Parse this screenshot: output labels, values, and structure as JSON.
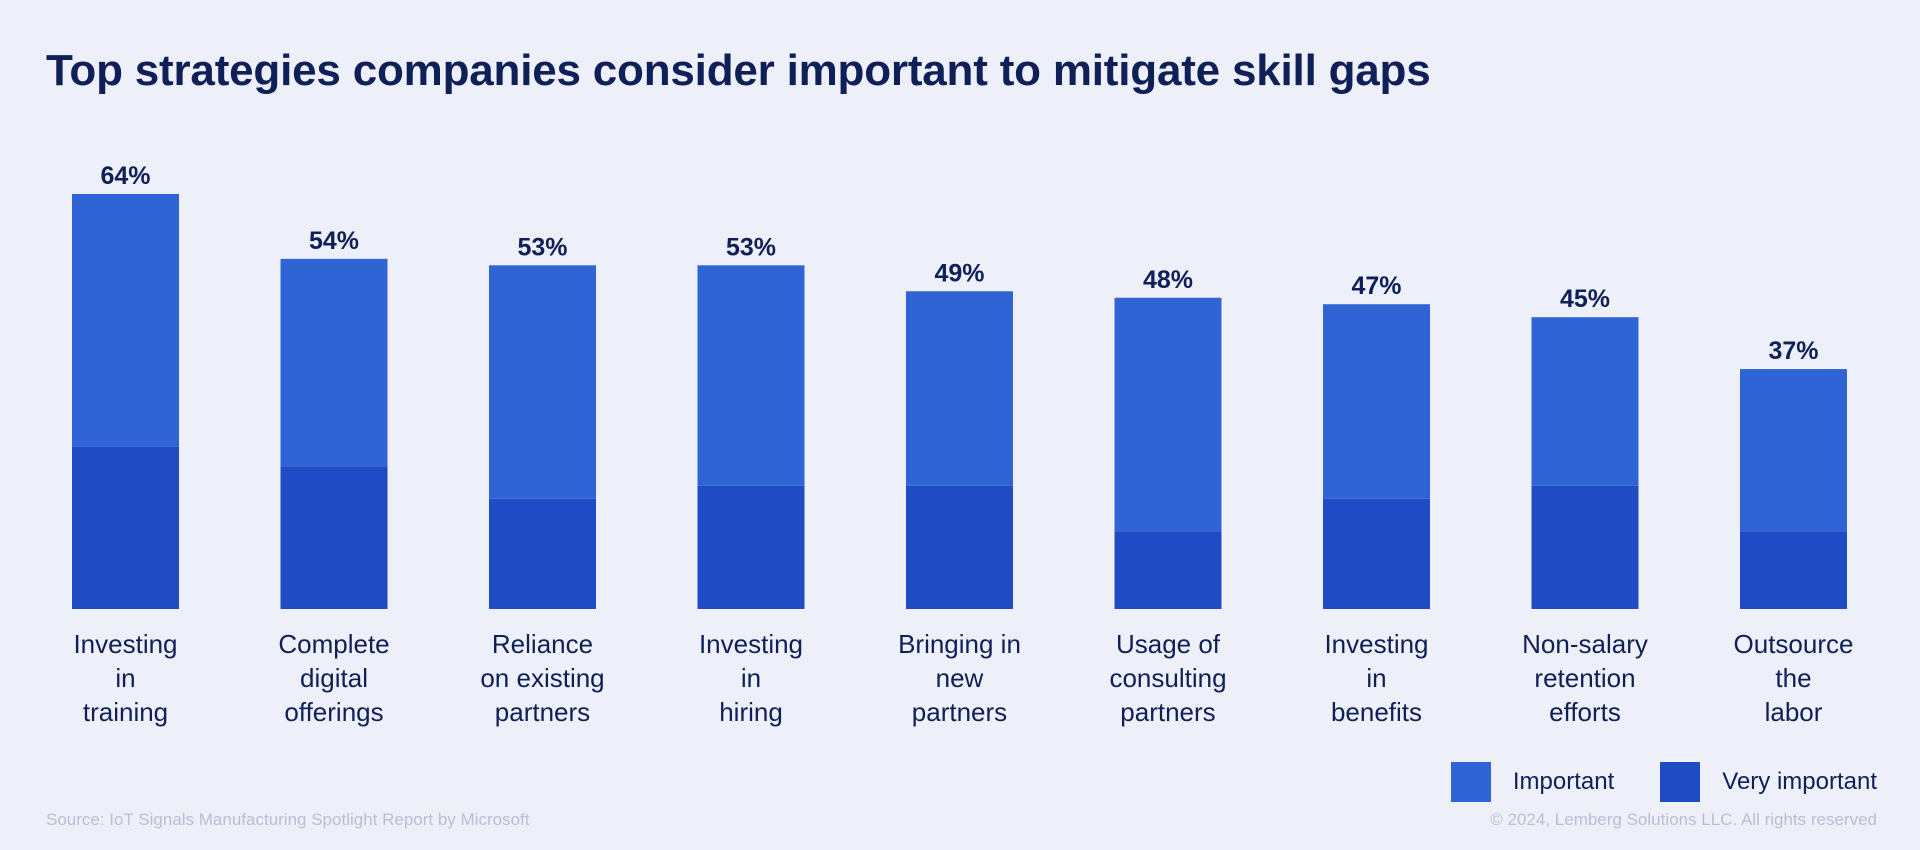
{
  "chart_data": {
    "type": "bar",
    "stacked": true,
    "title": "Top strategies companies consider important to mitigate skill gaps",
    "categories": [
      [
        "Investing",
        "in",
        "training"
      ],
      [
        "Complete",
        "digital",
        "offerings"
      ],
      [
        "Reliance",
        "on existing",
        "partners"
      ],
      [
        "Investing",
        "in",
        "hiring"
      ],
      [
        "Bringing in",
        "new",
        "partners"
      ],
      [
        "Usage of",
        "consulting",
        "partners"
      ],
      [
        "Investing",
        "in",
        "benefits"
      ],
      [
        "Non-salary",
        "retention",
        "efforts"
      ],
      [
        "Outsource",
        "the",
        "labor"
      ]
    ],
    "total_labels": [
      "64%",
      "54%",
      "53%",
      "53%",
      "49%",
      "48%",
      "47%",
      "45%",
      "37%"
    ],
    "totals": [
      64,
      54,
      53,
      53,
      49,
      48,
      47,
      45,
      37
    ],
    "series": [
      {
        "name": "Very important",
        "values": [
          25,
          22,
          17,
          19,
          19,
          12,
          17,
          19,
          12
        ],
        "color": "#1f4bc4"
      },
      {
        "name": "Important",
        "values": [
          39,
          32,
          36,
          34,
          30,
          36,
          30,
          26,
          25
        ],
        "color": "#3063d4"
      }
    ],
    "ylim": [
      0,
      64
    ],
    "grid": false,
    "legend_position": "bottom-right"
  },
  "legend": [
    {
      "label": "Important",
      "color": "#3063d4"
    },
    {
      "label": "Very important",
      "color": "#1f4bc4"
    }
  ],
  "footer": {
    "source": "Source: IoT Signals Manufacturing Spotlight Report by Microsoft",
    "copyright": "© 2024, Lemberg Solutions LLC. All rights reserved"
  }
}
